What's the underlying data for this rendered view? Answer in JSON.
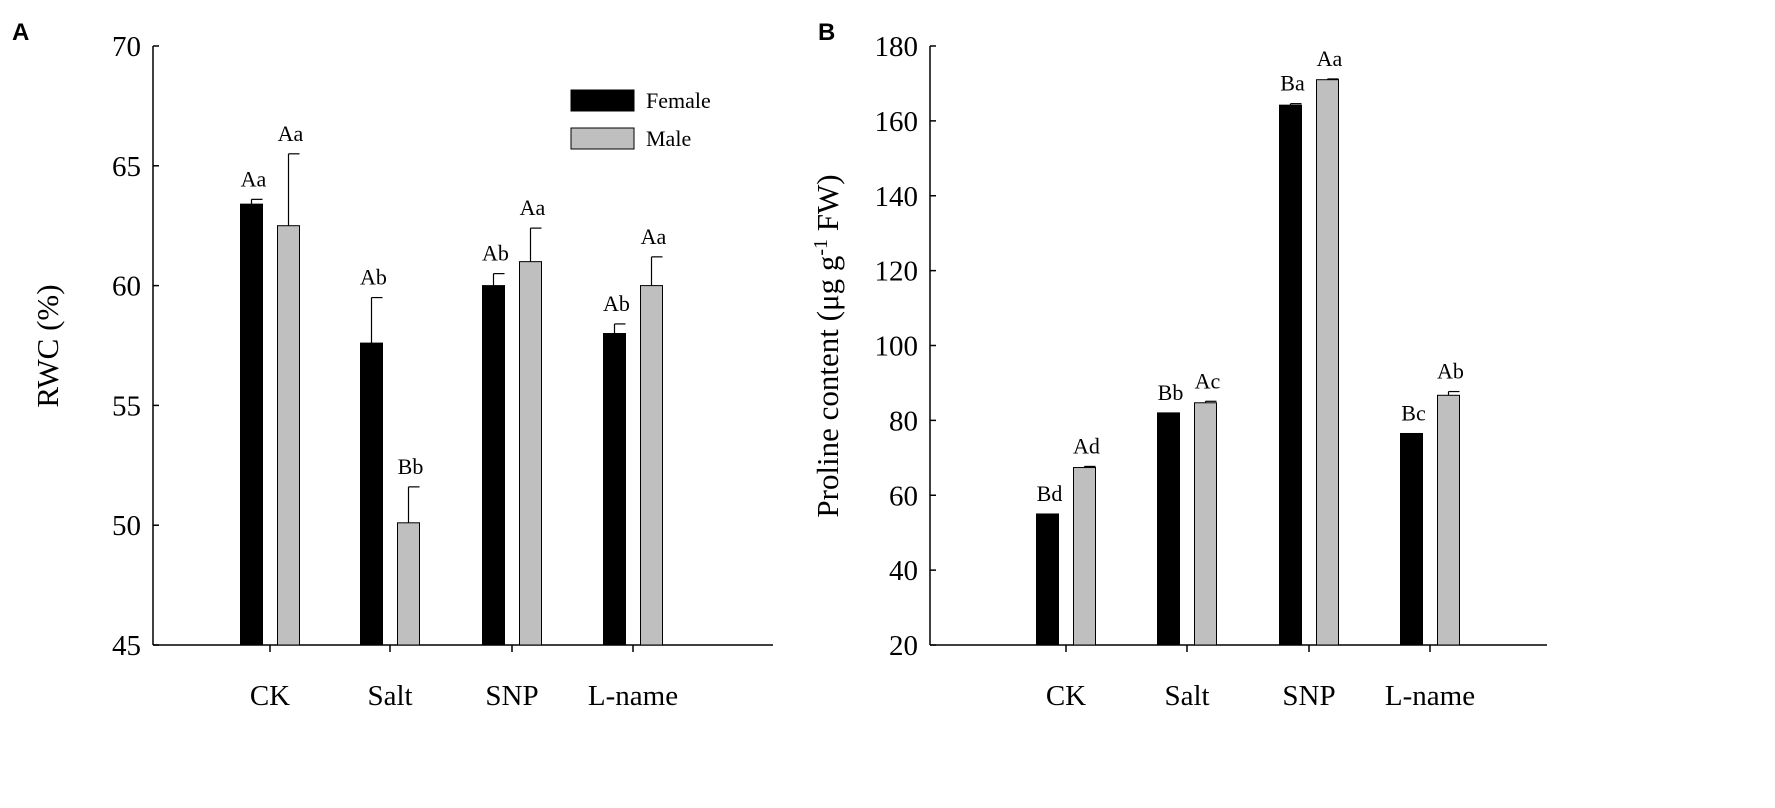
{
  "chart_data": [
    {
      "type": "bar",
      "panel_label": "A",
      "title": "",
      "xlabel": "",
      "ylabel": "RWC (%)",
      "ylim": [
        45,
        70
      ],
      "yticks": [
        45,
        50,
        55,
        60,
        65,
        70
      ],
      "grid": false,
      "legend_position": "top-right",
      "categories": [
        "CK",
        "Salt",
        "SNP",
        "L-name"
      ],
      "series": [
        {
          "name": "Female",
          "color": "#000000",
          "values": [
            63.4,
            57.6,
            60.0,
            58.0
          ],
          "errors": [
            0.2,
            1.9,
            0.5,
            0.4
          ],
          "labels": [
            "Aa",
            "Ab",
            "Ab",
            "Ab"
          ]
        },
        {
          "name": "Male",
          "color": "#bfbfbf",
          "values": [
            62.5,
            50.1,
            61.0,
            60.0
          ],
          "errors": [
            3.0,
            1.5,
            1.4,
            1.2
          ],
          "labels": [
            "Aa",
            "Bb",
            "Aa",
            "Aa"
          ]
        }
      ]
    },
    {
      "type": "bar",
      "panel_label": "B",
      "title": "",
      "xlabel": "",
      "ylabel": "Proline content (μg g",
      "ylabel_sup": "-1",
      "ylabel_tail": " FW)",
      "ylim": [
        20,
        180
      ],
      "yticks": [
        20,
        40,
        60,
        80,
        100,
        120,
        140,
        160,
        180
      ],
      "grid": false,
      "legend_position": "none",
      "categories": [
        "CK",
        "Salt",
        "SNP",
        "L-name"
      ],
      "series": [
        {
          "name": "Female",
          "color": "#000000",
          "values": [
            55.0,
            82.0,
            164.2,
            76.5
          ],
          "errors": [
            0.0,
            0.0,
            0.4,
            0.0
          ],
          "labels": [
            "Bd",
            "Bb",
            "Ba",
            "Bc"
          ]
        },
        {
          "name": "Male",
          "color": "#bfbfbf",
          "values": [
            67.4,
            84.7,
            171.0,
            86.7
          ],
          "errors": [
            0.3,
            0.4,
            0.2,
            1.0
          ],
          "labels": [
            "Ad",
            "Ac",
            "Aa",
            "Ab"
          ]
        }
      ]
    }
  ]
}
